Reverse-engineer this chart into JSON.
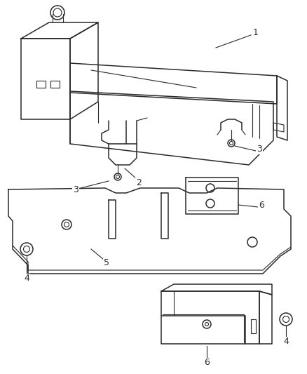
{
  "bg_color": "#ffffff",
  "line_color": "#2a2a2a",
  "figsize": [
    4.38,
    5.33
  ],
  "dpi": 100,
  "label_color": "#2a2a2a",
  "lw_main": 1.1,
  "lw_thin": 0.8,
  "font_size": 9
}
